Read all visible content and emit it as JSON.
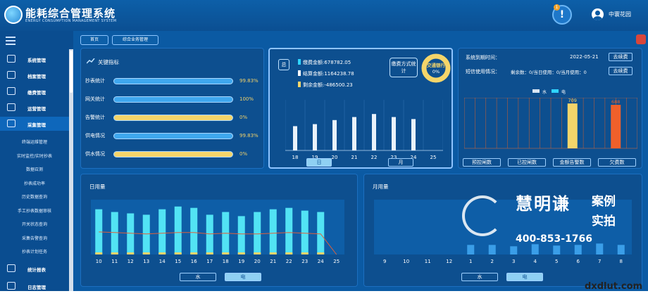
{
  "header": {
    "title": "能耗综合管理系统",
    "subtitle": "ENERGY CONSUMPTION MANAGEMENT SYSTEM",
    "alert_count": "1",
    "alert_symbol": "!",
    "user": "中寰花园"
  },
  "sidebar": {
    "items": [
      {
        "label": "系统管理",
        "icon": "monitor-icon"
      },
      {
        "label": "档案管理",
        "icon": "folder-icon"
      },
      {
        "label": "缴费管理",
        "icon": "yen-icon"
      },
      {
        "label": "运营管理",
        "icon": "chart-screen-icon"
      },
      {
        "label": "采集管理",
        "icon": "download-icon"
      }
    ],
    "subitems": [
      "终端运维管理",
      "实时监控/实时抄表",
      "数据召测",
      "抄表成功率",
      "历史数据查询",
      "手工抄表数据审核",
      "开关状态查询",
      "采集告警查询",
      "抄表计划任务"
    ],
    "bottom": [
      {
        "label": "统计报表",
        "icon": "line-chart-icon"
      },
      {
        "label": "日志管理",
        "icon": "log-icon"
      }
    ]
  },
  "tabs": [
    "首页",
    "综合业务管理"
  ],
  "key_metrics": {
    "title": "关键指标",
    "rows": [
      {
        "label": "抄表统计",
        "pct": "99.83%",
        "value": 0.9983,
        "color": "#3fa7ee"
      },
      {
        "label": "网关统计",
        "pct": "100%",
        "value": 1.0,
        "color": "#3fa7ee"
      },
      {
        "label": "告警统计",
        "pct": "0%",
        "value": 0.0,
        "color": "#f4d56a"
      },
      {
        "label": "供电情况",
        "pct": "99.83%",
        "value": 0.9983,
        "color": "#3fa7ee"
      },
      {
        "label": "供水情况",
        "pct": "0%",
        "value": 0.0,
        "color": "#f4d56a"
      }
    ]
  },
  "payment": {
    "icon_text": "总",
    "lines": [
      {
        "label": "缴费金额:678782.05",
        "color": "#2fd4ff"
      },
      {
        "label": "结算金额:1164238.78",
        "color": "#ffffff"
      },
      {
        "label": "剩余金额:-486500.23",
        "color": "#f4d56a"
      }
    ],
    "bubble": "缴费方式统计",
    "donut_label": "交通银行",
    "donut_pct": "0%",
    "buttons": [
      "日",
      "月"
    ]
  },
  "system": {
    "expire_label": "系统到期时间：",
    "expire_date": "2022-05-21",
    "sms_label": "短信使用情况：",
    "sms_text": "剩余数：0/当日使用：0/当月使用：0",
    "renew": "去续费",
    "legend": [
      {
        "label": "水",
        "color": "#d9e6f5"
      },
      {
        "label": "电",
        "color": "#2fd4ff"
      }
    ],
    "buttons": [
      "预控闸数",
      "已控闸数",
      "金额告警数",
      "欠费数"
    ]
  },
  "daily": {
    "title": "日用量",
    "buttons": [
      "水",
      "电"
    ]
  },
  "monthly": {
    "title": "月用量",
    "buttons": [
      "水",
      "电"
    ]
  },
  "watermark": {
    "brand": "慧明谦",
    "tag1": "案例",
    "tag2": "实拍",
    "phone": "400-853-1766"
  },
  "corner_text": "dxdlut.com",
  "chart_data": [
    {
      "type": "bar",
      "id": "payment-daily",
      "categories": [
        "18",
        "19",
        "20",
        "21",
        "22",
        "23",
        "24",
        "25"
      ],
      "values": [
        48,
        52,
        60,
        66,
        72,
        66,
        62,
        0
      ],
      "ylim": [
        0,
        100
      ]
    },
    {
      "type": "bar",
      "id": "control-counts",
      "categories": [
        "预控闸数",
        "已控闸数",
        "金额告警数",
        "欠费数"
      ],
      "series": [
        {
          "name": "水",
          "values": [
            0,
            0,
            0,
            0
          ]
        },
        {
          "name": "电",
          "values": [
            0,
            0,
            709,
            688
          ]
        }
      ],
      "data_labels": [
        "709",
        "688"
      ],
      "ylim": [
        0,
        800
      ],
      "colors": [
        "#f4d56a",
        "#f0602a"
      ]
    },
    {
      "type": "bar",
      "id": "daily-usage",
      "categories": [
        "10",
        "11",
        "12",
        "13",
        "14",
        "15",
        "16",
        "17",
        "18",
        "19",
        "20",
        "21",
        "22",
        "23",
        "24",
        "25"
      ],
      "series": [
        {
          "name": "bars",
          "values": [
            66,
            62,
            60,
            58,
            66,
            70,
            68,
            58,
            62,
            56,
            62,
            66,
            68,
            64,
            62,
            0
          ]
        },
        {
          "name": "line",
          "values": [
            33,
            32,
            31,
            30,
            31,
            32,
            32,
            30,
            31,
            30,
            30,
            31,
            32,
            31,
            30,
            0
          ]
        }
      ],
      "ylim": [
        0,
        80
      ]
    },
    {
      "type": "bar",
      "id": "monthly-usage",
      "categories": [
        "9",
        "10",
        "11",
        "12",
        "1",
        "2",
        "3",
        "4",
        "5",
        "6",
        "7",
        "8"
      ],
      "values": [
        0,
        0,
        0,
        0,
        14,
        14,
        12,
        15,
        13,
        14,
        16,
        14
      ],
      "ylim": [
        0,
        80
      ]
    }
  ]
}
